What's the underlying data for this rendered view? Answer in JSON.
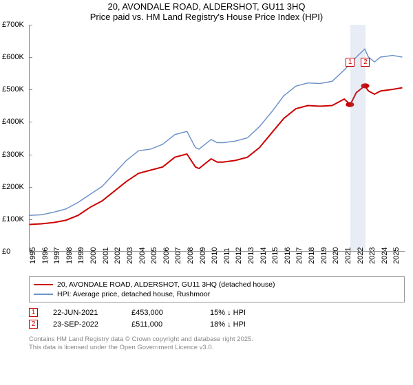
{
  "title": {
    "line1": "20, AVONDALE ROAD, ALDERSHOT, GU11 3HQ",
    "line2": "Price paid vs. HM Land Registry's House Price Index (HPI)"
  },
  "chart": {
    "type": "line",
    "background_color": "#ffffff",
    "grid_color": "#888888",
    "x_range": [
      1995,
      2026
    ],
    "y_range": [
      0,
      700000
    ],
    "y_ticks": [
      {
        "value": 0,
        "label": "£0"
      },
      {
        "value": 100000,
        "label": "£100K"
      },
      {
        "value": 200000,
        "label": "£200K"
      },
      {
        "value": 300000,
        "label": "£300K"
      },
      {
        "value": 400000,
        "label": "£400K"
      },
      {
        "value": 500000,
        "label": "£500K"
      },
      {
        "value": 600000,
        "label": "£600K"
      },
      {
        "value": 700000,
        "label": "£700K"
      }
    ],
    "x_ticks": [
      1995,
      1996,
      1997,
      1998,
      1999,
      2000,
      2001,
      2002,
      2003,
      2004,
      2005,
      2006,
      2007,
      2008,
      2009,
      2010,
      2011,
      2012,
      2013,
      2014,
      2015,
      2016,
      2017,
      2018,
      2019,
      2020,
      2021,
      2022,
      2023,
      2024,
      2025
    ],
    "series": [
      {
        "name": "price_paid",
        "color": "#cc0000",
        "stroke_width": 2,
        "points": [
          [
            1995,
            82000
          ],
          [
            1996,
            84000
          ],
          [
            1997,
            88000
          ],
          [
            1998,
            95000
          ],
          [
            1999,
            110000
          ],
          [
            2000,
            135000
          ],
          [
            2001,
            155000
          ],
          [
            2002,
            185000
          ],
          [
            2003,
            215000
          ],
          [
            2004,
            240000
          ],
          [
            2005,
            250000
          ],
          [
            2006,
            260000
          ],
          [
            2007,
            290000
          ],
          [
            2008,
            300000
          ],
          [
            2008.7,
            260000
          ],
          [
            2009,
            255000
          ],
          [
            2010,
            285000
          ],
          [
            2010.5,
            275000
          ],
          [
            2011,
            275000
          ],
          [
            2012,
            280000
          ],
          [
            2013,
            290000
          ],
          [
            2014,
            320000
          ],
          [
            2015,
            365000
          ],
          [
            2016,
            410000
          ],
          [
            2017,
            440000
          ],
          [
            2018,
            450000
          ],
          [
            2019,
            448000
          ],
          [
            2020,
            450000
          ],
          [
            2021,
            470000
          ],
          [
            2021.5,
            453000
          ],
          [
            2022,
            490000
          ],
          [
            2022.7,
            511000
          ],
          [
            2023,
            495000
          ],
          [
            2023.5,
            485000
          ],
          [
            2024,
            495000
          ],
          [
            2025,
            500000
          ],
          [
            2025.8,
            505000
          ]
        ]
      },
      {
        "name": "hpi",
        "color": "#6f93c9",
        "stroke_width": 1.5,
        "points": [
          [
            1995,
            110000
          ],
          [
            1996,
            112000
          ],
          [
            1997,
            120000
          ],
          [
            1998,
            130000
          ],
          [
            1999,
            150000
          ],
          [
            2000,
            175000
          ],
          [
            2001,
            200000
          ],
          [
            2002,
            240000
          ],
          [
            2003,
            280000
          ],
          [
            2004,
            310000
          ],
          [
            2005,
            315000
          ],
          [
            2006,
            330000
          ],
          [
            2007,
            360000
          ],
          [
            2008,
            370000
          ],
          [
            2008.7,
            320000
          ],
          [
            2009,
            315000
          ],
          [
            2010,
            345000
          ],
          [
            2010.5,
            335000
          ],
          [
            2011,
            335000
          ],
          [
            2012,
            340000
          ],
          [
            2013,
            350000
          ],
          [
            2014,
            385000
          ],
          [
            2015,
            430000
          ],
          [
            2016,
            480000
          ],
          [
            2017,
            510000
          ],
          [
            2018,
            520000
          ],
          [
            2019,
            518000
          ],
          [
            2020,
            525000
          ],
          [
            2021,
            560000
          ],
          [
            2022,
            600000
          ],
          [
            2022.7,
            625000
          ],
          [
            2023,
            600000
          ],
          [
            2023.5,
            585000
          ],
          [
            2024,
            600000
          ],
          [
            2025,
            605000
          ],
          [
            2025.8,
            600000
          ]
        ]
      }
    ],
    "highlight_band": {
      "x_start": 2021.47,
      "x_end": 2022.73,
      "color": "rgba(120,150,200,0.18)"
    },
    "sale_markers": [
      {
        "id": "1",
        "x": 2021.47,
        "y_top": 48,
        "color": "#cc0000",
        "point_value": 453000
      },
      {
        "id": "2",
        "x": 2022.73,
        "y_top": 48,
        "color": "#cc0000",
        "point_value": 511000
      }
    ]
  },
  "legend": {
    "items": [
      {
        "color": "#cc0000",
        "label": "20, AVONDALE ROAD, ALDERSHOT, GU11 3HQ (detached house)"
      },
      {
        "color": "#6f93c9",
        "label": "HPI: Average price, detached house, Rushmoor"
      }
    ]
  },
  "sales": [
    {
      "id": "1",
      "color": "#cc0000",
      "date": "22-JUN-2021",
      "price": "£453,000",
      "delta": "15% ↓ HPI"
    },
    {
      "id": "2",
      "color": "#cc0000",
      "date": "23-SEP-2022",
      "price": "£511,000",
      "delta": "18% ↓ HPI"
    }
  ],
  "footer": {
    "line1": "Contains HM Land Registry data © Crown copyright and database right 2025.",
    "line2": "This data is licensed under the Open Government Licence v3.0."
  }
}
